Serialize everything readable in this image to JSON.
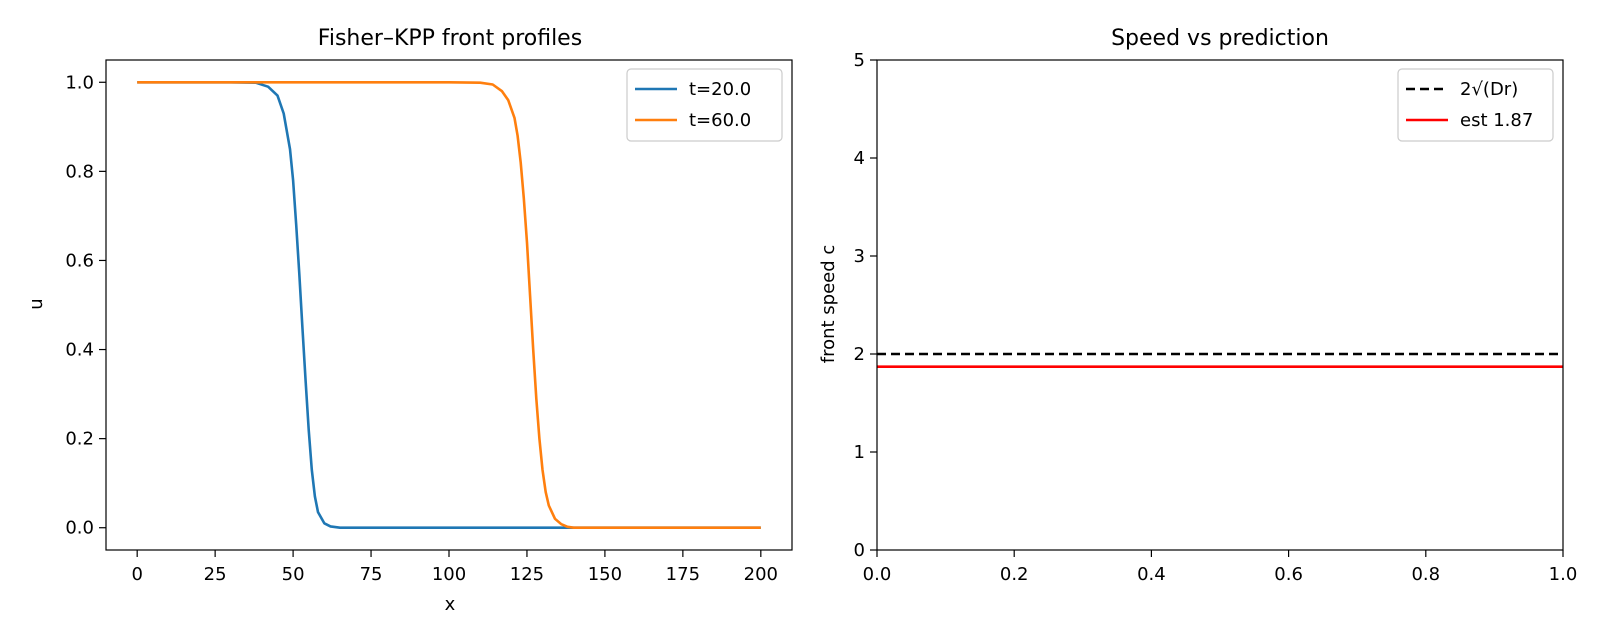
{
  "chart_data": [
    {
      "type": "line",
      "title": "Fisher–KPP front profiles",
      "xlabel": "x",
      "ylabel": "u",
      "xlim": [
        -10,
        210
      ],
      "ylim": [
        -0.05,
        1.05
      ],
      "xticks": [
        0,
        25,
        50,
        75,
        100,
        125,
        150,
        175,
        200
      ],
      "xtick_labels": [
        "0",
        "25",
        "50",
        "75",
        "100",
        "125",
        "150",
        "175",
        "200"
      ],
      "yticks": [
        0.0,
        0.2,
        0.4,
        0.6,
        0.8,
        1.0
      ],
      "ytick_labels": [
        "0.0",
        "0.2",
        "0.4",
        "0.6",
        "0.8",
        "1.0"
      ],
      "grid": false,
      "legend": "top-right",
      "series": [
        {
          "name": "t=20.0",
          "color": "#1f77b4",
          "x": [
            0,
            10,
            20,
            30,
            38,
            42,
            45,
            47,
            49,
            50,
            51,
            52,
            53,
            54,
            55,
            56,
            57,
            58,
            60,
            62,
            65,
            70,
            80,
            100,
            125,
            150,
            175,
            200
          ],
          "y": [
            1.0,
            1.0,
            1.0,
            1.0,
            0.999,
            0.99,
            0.97,
            0.93,
            0.85,
            0.78,
            0.68,
            0.57,
            0.45,
            0.33,
            0.22,
            0.13,
            0.07,
            0.035,
            0.01,
            0.003,
            0.0,
            0.0,
            0.0,
            0.0,
            0.0,
            0.0,
            0.0,
            0.0
          ]
        },
        {
          "name": "t=60.0",
          "color": "#ff7f0e",
          "x": [
            0,
            25,
            50,
            75,
            100,
            110,
            114,
            117,
            119,
            121,
            122,
            123,
            124,
            125,
            126,
            127,
            128,
            129,
            130,
            131,
            132,
            134,
            136,
            138,
            140,
            150,
            175,
            200
          ],
          "y": [
            1.0,
            1.0,
            1.0,
            1.0,
            1.0,
            0.999,
            0.995,
            0.98,
            0.96,
            0.92,
            0.88,
            0.82,
            0.74,
            0.64,
            0.52,
            0.4,
            0.29,
            0.2,
            0.13,
            0.08,
            0.05,
            0.02,
            0.008,
            0.002,
            0.0,
            0.0,
            0.0,
            0.0
          ]
        }
      ]
    },
    {
      "type": "line",
      "title": "Speed vs prediction",
      "xlabel": "",
      "ylabel": "front speed c",
      "xlim": [
        0,
        1
      ],
      "ylim": [
        0,
        5
      ],
      "xticks": [
        0.0,
        0.2,
        0.4,
        0.6,
        0.8,
        1.0
      ],
      "xtick_labels": [
        "0.0",
        "0.2",
        "0.4",
        "0.6",
        "0.8",
        "1.0"
      ],
      "yticks": [
        0,
        1,
        2,
        3,
        4,
        5
      ],
      "ytick_labels": [
        "0",
        "1",
        "2",
        "3",
        "4",
        "5"
      ],
      "grid": false,
      "legend": "top-right",
      "series": [
        {
          "name": "2√(Dr)",
          "color": "#000000",
          "dash": true,
          "x": [
            0,
            1
          ],
          "y": [
            2.0,
            2.0
          ]
        },
        {
          "name": "est 1.87",
          "color": "#ff0000",
          "dash": false,
          "x": [
            0,
            1
          ],
          "y": [
            1.87,
            1.87
          ]
        }
      ]
    }
  ]
}
